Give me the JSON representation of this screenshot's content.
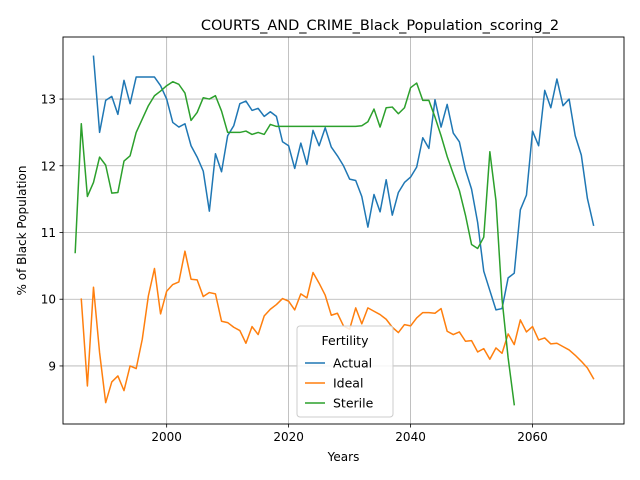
{
  "chart_data": {
    "type": "line",
    "title": "COURTS_AND_CRIME_Black_Population_scoring_2",
    "xlabel": "Years",
    "ylabel": "% of Black Population",
    "xlim": [
      1983,
      2075
    ],
    "ylim": [
      8.13,
      13.93
    ],
    "xticks": [
      2000,
      2020,
      2040,
      2060
    ],
    "yticks": [
      9,
      10,
      11,
      12,
      13
    ],
    "grid": true,
    "legend": {
      "title": "Fertility",
      "position": "lower-center"
    },
    "series": [
      {
        "name": "Actual",
        "color": "#1f77b4",
        "x": [
          1988,
          1989,
          1990,
          1991,
          1992,
          1993,
          1994,
          1995,
          1996,
          1997,
          1998,
          1999,
          2000,
          2001,
          2002,
          2003,
          2004,
          2005,
          2006,
          2007,
          2008,
          2009,
          2010,
          2011,
          2012,
          2013,
          2014,
          2015,
          2016,
          2017,
          2018,
          2019,
          2020,
          2021,
          2022,
          2023,
          2024,
          2025,
          2026,
          2027,
          2028,
          2029,
          2030,
          2031,
          2032,
          2033,
          2034,
          2035,
          2036,
          2037,
          2038,
          2039,
          2040,
          2041,
          2042,
          2043,
          2044,
          2045,
          2046,
          2047,
          2048,
          2049,
          2050,
          2051,
          2052,
          2053,
          2054,
          2055,
          2056,
          2057,
          2058,
          2059,
          2060,
          2061,
          2062,
          2063,
          2064,
          2065,
          2066,
          2067,
          2068,
          2069,
          2070
        ],
        "values": [
          13.64,
          12.5,
          12.98,
          13.04,
          12.77,
          13.28,
          12.93,
          13.33,
          13.33,
          13.33,
          13.33,
          13.2,
          13.0,
          12.65,
          12.58,
          12.63,
          12.3,
          12.13,
          11.92,
          11.32,
          12.18,
          11.91,
          12.45,
          12.6,
          12.93,
          12.97,
          12.83,
          12.86,
          12.74,
          12.81,
          12.74,
          12.36,
          12.3,
          11.96,
          12.34,
          12.02,
          12.53,
          12.3,
          12.57,
          12.28,
          12.15,
          12.0,
          11.8,
          11.78,
          11.54,
          11.08,
          11.57,
          11.31,
          11.79,
          11.26,
          11.6,
          11.75,
          11.83,
          11.98,
          12.42,
          12.26,
          12.99,
          12.58,
          12.92,
          12.49,
          12.36,
          11.94,
          11.65,
          11.15,
          10.42,
          10.13,
          9.84,
          9.86,
          10.32,
          10.39,
          11.34,
          11.56,
          12.52,
          12.3,
          13.13,
          12.87,
          13.3,
          12.9,
          13.0,
          12.45,
          12.16,
          11.51,
          11.11
        ]
      },
      {
        "name": "Ideal",
        "color": "#ff7f0e",
        "x": [
          1986,
          1987,
          1988,
          1989,
          1990,
          1991,
          1992,
          1993,
          1994,
          1995,
          1996,
          1997,
          1998,
          1999,
          2000,
          2001,
          2002,
          2003,
          2004,
          2005,
          2006,
          2007,
          2008,
          2009,
          2010,
          2011,
          2012,
          2013,
          2014,
          2015,
          2016,
          2017,
          2018,
          2019,
          2020,
          2021,
          2022,
          2023,
          2024,
          2025,
          2026,
          2027,
          2028,
          2029,
          2030,
          2031,
          2032,
          2033,
          2034,
          2035,
          2036,
          2037,
          2038,
          2039,
          2040,
          2041,
          2042,
          2043,
          2044,
          2045,
          2046,
          2047,
          2048,
          2049,
          2050,
          2051,
          2052,
          2053,
          2054,
          2055,
          2056,
          2057,
          2058,
          2059,
          2060,
          2061,
          2062,
          2063,
          2064,
          2065,
          2066,
          2067,
          2068,
          2069,
          2070
        ],
        "values": [
          10.0,
          8.7,
          10.18,
          9.2,
          8.45,
          8.76,
          8.85,
          8.63,
          9.0,
          8.96,
          9.4,
          10.05,
          10.46,
          9.78,
          10.12,
          10.22,
          10.26,
          10.72,
          10.3,
          10.29,
          10.04,
          10.1,
          10.08,
          9.67,
          9.65,
          9.58,
          9.53,
          9.34,
          9.59,
          9.47,
          9.75,
          9.85,
          9.92,
          10.01,
          9.97,
          9.84,
          10.08,
          10.02,
          10.4,
          10.24,
          10.06,
          9.76,
          9.79,
          9.6,
          9.55,
          9.87,
          9.63,
          9.87,
          9.82,
          9.77,
          9.7,
          9.58,
          9.5,
          9.62,
          9.6,
          9.72,
          9.8,
          9.8,
          9.79,
          9.86,
          9.52,
          9.47,
          9.51,
          9.37,
          9.38,
          9.21,
          9.26,
          9.1,
          9.27,
          9.19,
          9.48,
          9.32,
          9.69,
          9.51,
          9.59,
          9.39,
          9.42,
          9.33,
          9.34,
          9.29,
          9.24,
          9.16,
          9.07,
          8.97,
          8.81
        ]
      },
      {
        "name": "Sterile",
        "color": "#2ca02c",
        "x": [
          1985,
          1986,
          1987,
          1988,
          1989,
          1990,
          1991,
          1992,
          1993,
          1994,
          1995,
          1996,
          1997,
          1998,
          1999,
          2000,
          2001,
          2002,
          2003,
          2004,
          2005,
          2006,
          2007,
          2008,
          2009,
          2010,
          2011,
          2012,
          2013,
          2014,
          2015,
          2016,
          2017,
          2018,
          2019,
          2020,
          2021,
          2022,
          2023,
          2024,
          2025,
          2026,
          2027,
          2028,
          2029,
          2030,
          2031,
          2032,
          2033,
          2034,
          2035,
          2036,
          2037,
          2038,
          2039,
          2040,
          2041,
          2042,
          2043,
          2044,
          2045,
          2046,
          2047,
          2048,
          2049,
          2050,
          2051,
          2052,
          2053,
          2054,
          2055,
          2056,
          2057
        ],
        "values": [
          10.7,
          12.63,
          11.54,
          11.75,
          12.13,
          12.01,
          11.59,
          11.6,
          12.07,
          12.15,
          12.5,
          12.7,
          12.9,
          13.05,
          13.12,
          13.2,
          13.26,
          13.22,
          13.09,
          12.68,
          12.8,
          13.02,
          13.0,
          13.05,
          12.82,
          12.5,
          12.5,
          12.5,
          12.52,
          12.47,
          12.5,
          12.47,
          12.62,
          12.59,
          12.59,
          12.59,
          12.59,
          12.59,
          12.59,
          12.59,
          12.59,
          12.59,
          12.59,
          12.59,
          12.59,
          12.59,
          12.59,
          12.6,
          12.66,
          12.85,
          12.58,
          12.87,
          12.88,
          12.78,
          12.87,
          13.17,
          13.24,
          12.98,
          12.98,
          12.73,
          12.45,
          12.14,
          11.88,
          11.63,
          11.26,
          10.82,
          10.76,
          10.93,
          12.21,
          11.48,
          10.0,
          9.12,
          8.42
        ]
      }
    ]
  }
}
